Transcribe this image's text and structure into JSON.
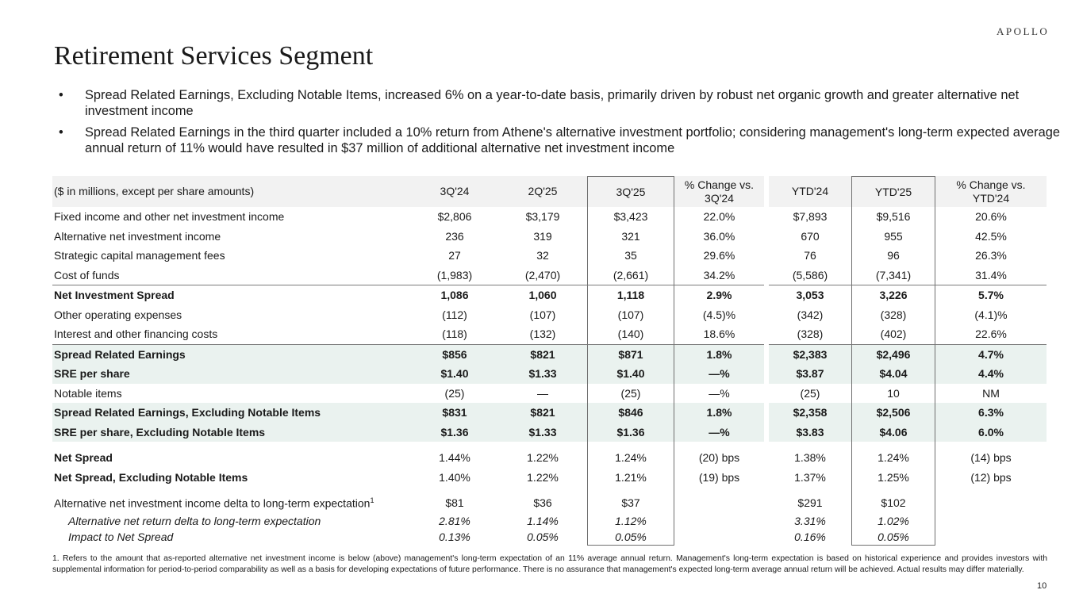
{
  "logo": "APOLLO",
  "title": "Retirement Services Segment",
  "bullets": [
    "Spread Related Earnings, Excluding Notable Items, increased 6% on a year-to-date basis, primarily driven by robust net organic growth and greater alternative net investment income",
    "Spread Related Earnings in the third quarter included a 10% return from Athene's alternative investment portfolio; considering management's long-term expected average annual return of 11% would have resulted in $37 million of additional alternative net investment income"
  ],
  "table": {
    "header": [
      "($ in millions, except per share amounts)",
      "3Q'24",
      "2Q'25",
      "3Q'25",
      "% Change vs. 3Q'24",
      "YTD'24",
      "YTD'25",
      "% Change vs. YTD'24"
    ],
    "rows": [
      {
        "label": "Fixed income and other net investment income",
        "values": [
          "$2,806",
          "$3,179",
          "$3,423",
          "22.0%",
          "$7,893",
          "$9,516",
          "20.6%"
        ],
        "style": ""
      },
      {
        "label": "Alternative net investment income",
        "values": [
          "236",
          "319",
          "321",
          "36.0%",
          "670",
          "955",
          "42.5%"
        ],
        "style": ""
      },
      {
        "label": "Strategic capital management fees",
        "values": [
          "27",
          "32",
          "35",
          "29.6%",
          "76",
          "96",
          "26.3%"
        ],
        "style": ""
      },
      {
        "label": "Cost of funds",
        "values": [
          "(1,983)",
          "(2,470)",
          "(2,661)",
          "34.2%",
          "(5,586)",
          "(7,341)",
          "31.4%"
        ],
        "style": "line"
      },
      {
        "label": "Net Investment Spread",
        "values": [
          "1,086",
          "1,060",
          "1,118",
          "2.9%",
          "3,053",
          "3,226",
          "5.7%"
        ],
        "style": "bold"
      },
      {
        "label": "Other operating expenses",
        "values": [
          "(112)",
          "(107)",
          "(107)",
          "(4.5)%",
          "(342)",
          "(328)",
          "(4.1)%"
        ],
        "style": ""
      },
      {
        "label": "Interest and other financing costs",
        "values": [
          "(118)",
          "(132)",
          "(140)",
          "18.6%",
          "(328)",
          "(402)",
          "22.6%"
        ],
        "style": "line"
      },
      {
        "label": "Spread Related Earnings",
        "values": [
          "$856",
          "$821",
          "$871",
          "1.8%",
          "$2,383",
          "$2,496",
          "4.7%"
        ],
        "style": "bold green"
      },
      {
        "label": "SRE per share",
        "values": [
          "$1.40",
          "$1.33",
          "$1.40",
          "—%",
          "$3.87",
          "$4.04",
          "4.4%"
        ],
        "style": "bold green"
      },
      {
        "label": "Notable items",
        "values": [
          "(25)",
          "—",
          "(25)",
          "—%",
          "(25)",
          "10",
          "NM"
        ],
        "style": ""
      },
      {
        "label": "Spread Related Earnings, Excluding Notable Items",
        "values": [
          "$831",
          "$821",
          "$846",
          "1.8%",
          "$2,358",
          "$2,506",
          "6.3%"
        ],
        "style": "bold green"
      },
      {
        "label": "SRE per share, Excluding Notable Items",
        "values": [
          "$1.36",
          "$1.33",
          "$1.36",
          "—%",
          "$3.83",
          "$4.06",
          "6.0%"
        ],
        "style": "bold green"
      },
      {
        "spacer": true
      },
      {
        "label": "Net Spread",
        "values": [
          "1.44%",
          "1.22%",
          "1.24%",
          "(20) bps",
          "1.38%",
          "1.24%",
          "(14) bps"
        ],
        "style": "bold-label"
      },
      {
        "label": "Net Spread, Excluding Notable Items",
        "values": [
          "1.40%",
          "1.22%",
          "1.21%",
          "(19) bps",
          "1.37%",
          "1.25%",
          "(12) bps"
        ],
        "style": "bold-label"
      },
      {
        "spacer": true
      },
      {
        "label": "Alternative net investment income delta to long-term expectation",
        "sup": "1",
        "values": [
          "$81",
          "$36",
          "$37",
          "",
          "$291",
          "$102",
          ""
        ],
        "style": ""
      },
      {
        "label": "Alternative net return delta to long-term expectation",
        "values": [
          "2.81%",
          "1.14%",
          "1.12%",
          "",
          "3.31%",
          "1.02%",
          ""
        ],
        "style": "ital"
      },
      {
        "label": "Impact to Net Spread",
        "values": [
          "0.13%",
          "0.05%",
          "0.05%",
          "",
          "0.16%",
          "0.05%",
          ""
        ],
        "style": "ital last"
      }
    ]
  },
  "footnote": "1. Refers to the amount that as-reported alternative net investment income is below (above) management's long-term expectation of an 11% average annual return. Management's long-term expectation is based on historical experience and provides investors with supplemental information for period-to-period comparability as well as a basis for developing expectations of future performance. There is no assurance that management's expected long-term average annual return will be achieved. Actual results may differ materially.",
  "page_number": "10",
  "colors": {
    "header_bg": "#f2f2f2",
    "highlight_bg": "#eaf2ef",
    "box_border": "#6f6f6f"
  }
}
